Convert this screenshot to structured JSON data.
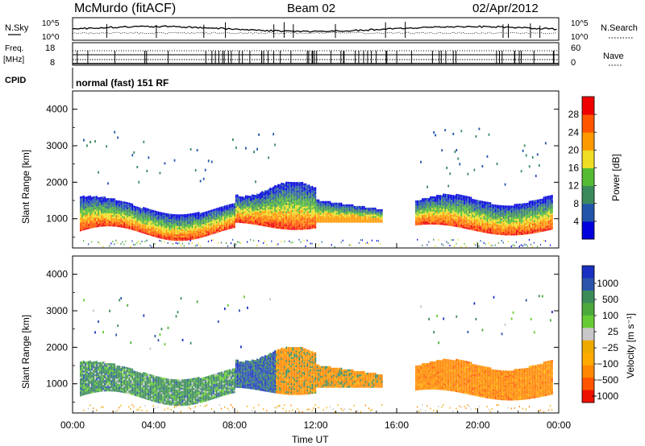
{
  "header": {
    "station": "McMurdo (fitACF)",
    "beam": "Beam 02",
    "date": "02/Apr/2012"
  },
  "status_panels": {
    "nsky_label": "N.Sky",
    "nsky_ticks": [
      "10^5",
      "10^0"
    ],
    "nsearch_label": "N.Search",
    "nsearch_ticks": [
      "10^5",
      "10^0"
    ],
    "freq_label": "Freq.",
    "freq_unit": "[MHz]",
    "freq_ticks": [
      "18",
      "8"
    ],
    "nave_label": "Nave",
    "nave_ticks": [
      "60",
      "0"
    ],
    "cpid_label": "CPID",
    "cpid_text": "normal (fast) 151 RF"
  },
  "colors": {
    "power_scale": [
      "#0000dd",
      "#2255aa",
      "#3b8a5c",
      "#55bb33",
      "#eedd22",
      "#ff9900",
      "#ff5500",
      "#ee0000"
    ],
    "velocity_scale": [
      "#1a2fbf",
      "#2a55aa",
      "#3c8c5a",
      "#4caa3c",
      "#66cc33",
      "#c8c8c8",
      "#eeaa00",
      "#ffaa00",
      "#ff8800",
      "#ff5500",
      "#ee1100"
    ]
  },
  "chart_data": [
    {
      "type": "heatmap",
      "name": "power",
      "ylabel": "Slant Range [km]",
      "yticks": [
        "4000",
        "3000",
        "2000",
        "1000"
      ],
      "ylim": [
        200,
        4500
      ],
      "xlim": [
        0,
        24
      ],
      "colorbar_label": "Power [dB]",
      "colorbar_ticks": [
        "28",
        "24",
        "20",
        "16",
        "12",
        "8",
        "4"
      ],
      "colorbar_range": [
        0,
        32
      ]
    },
    {
      "type": "heatmap",
      "name": "velocity",
      "ylabel": "Slant Range [km]",
      "yticks": [
        "4000",
        "3000",
        "2000",
        "1000"
      ],
      "ylim": [
        200,
        4500
      ],
      "xlim": [
        0,
        24
      ],
      "xticks": [
        "00:00",
        "04:00",
        "08:00",
        "12:00",
        "16:00",
        "20:00",
        "00:00"
      ],
      "xlabel": "Time UT",
      "colorbar_label": "Velocity [m s⁻¹]",
      "colorbar_ticks": [
        "1000",
        "500",
        "100",
        "25",
        "−25",
        "−100",
        "−500",
        "−1000"
      ]
    }
  ]
}
